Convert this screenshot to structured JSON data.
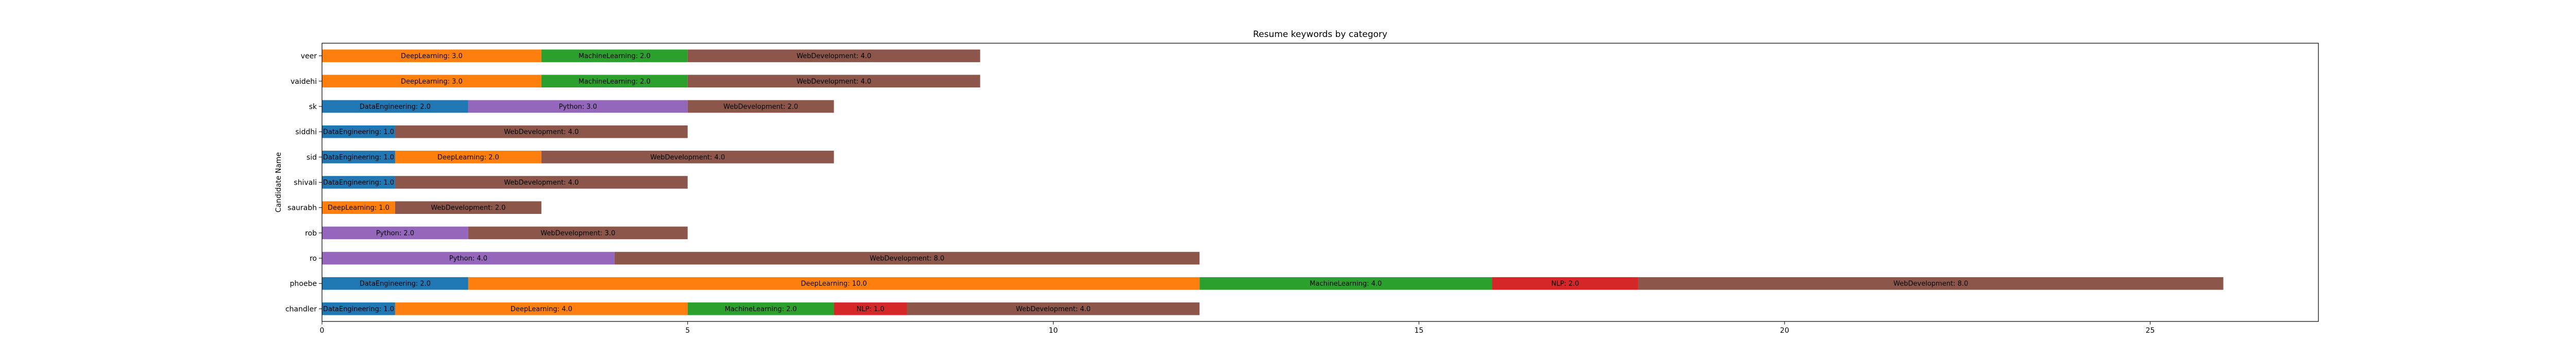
{
  "chart_data": {
    "type": "bar",
    "orientation": "horizontal",
    "stacked": true,
    "title": "Resume keywords by category",
    "xlabel": "",
    "ylabel": "Candidate Name",
    "xlim": [
      0,
      27.3
    ],
    "xticks": [
      0,
      5,
      10,
      15,
      20,
      25
    ],
    "grid": false,
    "legend": "none",
    "categories": [
      "chandler",
      "phoebe",
      "ro",
      "rob",
      "saurabh",
      "shivali",
      "sid",
      "siddhi",
      "sk",
      "vaidehi",
      "veer"
    ],
    "series": [
      {
        "name": "DataEngineering",
        "color": "#1f77b4",
        "values": [
          1,
          2,
          0,
          0,
          0,
          1,
          1,
          1,
          2,
          0,
          0
        ]
      },
      {
        "name": "DeepLearning",
        "color": "#ff7f0e",
        "values": [
          4,
          10,
          0,
          0,
          1,
          0,
          2,
          0,
          0,
          3,
          3
        ]
      },
      {
        "name": "MachineLearning",
        "color": "#2ca02c",
        "values": [
          2,
          4,
          0,
          0,
          0,
          0,
          0,
          0,
          0,
          2,
          2
        ]
      },
      {
        "name": "NLP",
        "color": "#d62728",
        "values": [
          1,
          2,
          0,
          0,
          0,
          0,
          0,
          0,
          0,
          0,
          0
        ]
      },
      {
        "name": "Python",
        "color": "#9467bd",
        "values": [
          0,
          0,
          4,
          2,
          0,
          0,
          0,
          0,
          3,
          0,
          0
        ]
      },
      {
        "name": "WebDevelopment",
        "color": "#8c564b",
        "values": [
          4,
          8,
          8,
          3,
          2,
          4,
          4,
          4,
          2,
          4,
          4
        ]
      }
    ]
  }
}
